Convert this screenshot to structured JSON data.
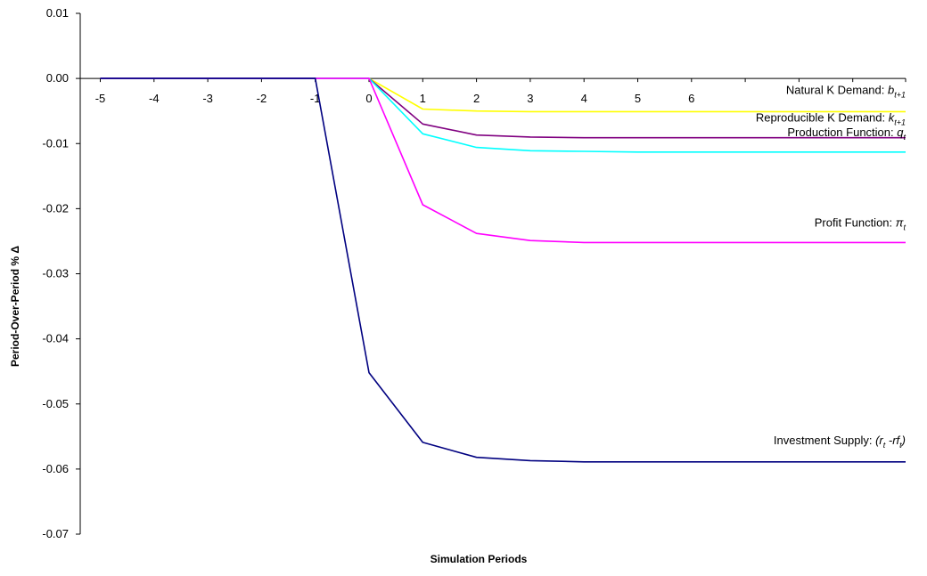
{
  "chart_data": {
    "type": "line",
    "title": "",
    "xlabel": "Simulation Periods",
    "ylabel": "Period-Over-Period % Δ",
    "x": [
      -5,
      -4,
      -3,
      -2,
      -1,
      0,
      1,
      2,
      3,
      4,
      5,
      6,
      7,
      8,
      9,
      10
    ],
    "x_tick_labels": [
      "-5",
      "-4",
      "-3",
      "-2",
      "-1",
      "0",
      "1",
      "2",
      "3",
      "4",
      "5",
      "6"
    ],
    "y_ticks": [
      0.01,
      0.0,
      -0.01,
      -0.02,
      -0.03,
      -0.04,
      -0.05,
      -0.06,
      -0.07
    ],
    "y_tick_labels": [
      "0.01",
      "0.00",
      "-0.01",
      "-0.02",
      "-0.03",
      "-0.04",
      "-0.05",
      "-0.06",
      "-0.07"
    ],
    "xlim": [
      -5,
      10
    ],
    "ylim": [
      -0.07,
      0.01
    ],
    "grid": false,
    "legend": "inline labels at right end of each series",
    "series": [
      {
        "name": "Natural K Demand: b t+1",
        "label_main": "Natural K Demand: ",
        "label_var": "b",
        "label_sub": "t+1",
        "color": "#ffff00",
        "values": [
          0,
          0,
          0,
          0,
          0,
          0,
          -0.0047,
          -0.005,
          -0.0051,
          -0.0051,
          -0.0051,
          -0.0051,
          -0.0051,
          -0.0051,
          -0.0051,
          -0.0051
        ]
      },
      {
        "name": "Reproducible K Demand: k t+1",
        "label_main": "Reproducible K Demand: ",
        "label_var": "k",
        "label_sub": "t+1",
        "color": "#800080",
        "values": [
          0,
          0,
          0,
          0,
          0,
          0,
          -0.007,
          -0.0087,
          -0.009,
          -0.0091,
          -0.0091,
          -0.0091,
          -0.0091,
          -0.0091,
          -0.0091,
          -0.0091
        ]
      },
      {
        "name": "Production Function: q t",
        "label_main": "Production Function: ",
        "label_var": "q",
        "label_sub": "t",
        "color": "#00ffff",
        "values": [
          0,
          0,
          0,
          0,
          0,
          0,
          -0.0085,
          -0.0106,
          -0.0111,
          -0.0112,
          -0.0113,
          -0.0113,
          -0.0113,
          -0.0113,
          -0.0113,
          -0.0113
        ]
      },
      {
        "name": "Profit Function: π t",
        "label_main": "Profit Function: ",
        "label_var": "π",
        "label_sub": "t",
        "color": "#ff00ff",
        "values": [
          0,
          0,
          0,
          0,
          0,
          0,
          -0.0194,
          -0.0238,
          -0.0249,
          -0.0252,
          -0.0252,
          -0.0252,
          -0.0252,
          -0.0252,
          -0.0252,
          -0.0252
        ]
      },
      {
        "name": "Investment Supply: (r t -rf t)",
        "label_main": "Investment Supply: ",
        "label_var": "(r",
        "label_sub": "t",
        "label_var2": " -rf",
        "label_sub2": "t",
        "label_end": ")",
        "color": "#000080",
        "values": [
          0,
          0,
          0,
          0,
          0,
          -0.0452,
          -0.0559,
          -0.0582,
          -0.0587,
          -0.0589,
          -0.0589,
          -0.0589,
          -0.0589,
          -0.0589,
          -0.0589,
          -0.0589
        ]
      }
    ]
  }
}
